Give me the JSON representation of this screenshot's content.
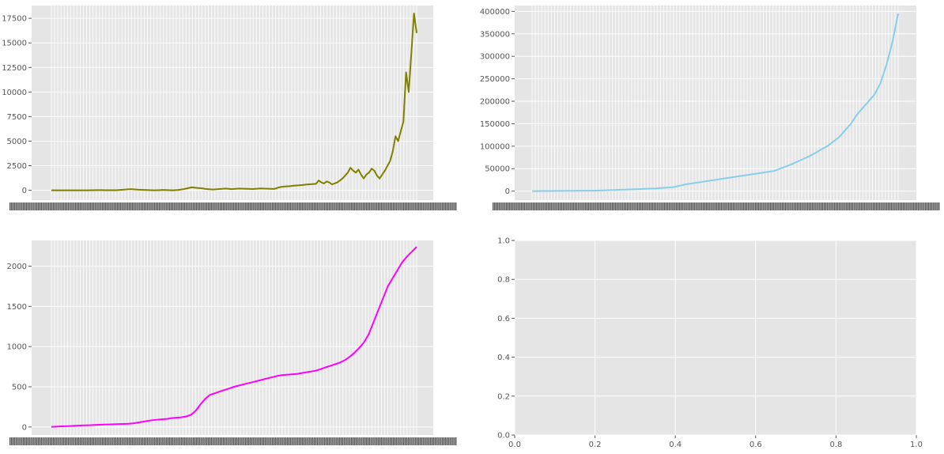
{
  "figure": {
    "background": "#ffffff",
    "axes_background": "#e5e5e5",
    "grid_color": "#ffffff",
    "tick_color": "#555555"
  },
  "chart_data": [
    {
      "type": "line",
      "position": "top-left",
      "grid": true,
      "y_ticks": [
        0,
        2500,
        5000,
        7500,
        10000,
        12500,
        15000,
        17500
      ],
      "y_tick_labels": [
        "0",
        "2500",
        "5000",
        "7500",
        "10000",
        "12500",
        "15000",
        "17500"
      ],
      "ylim": [
        -1000,
        18800
      ],
      "x_tick_labels_note": "x tick labels illegible (overlapping dates)",
      "series": [
        {
          "color": "#808000",
          "values": [
            0,
            0,
            0,
            0,
            0,
            0,
            0,
            0,
            0,
            0,
            0,
            0,
            0,
            0,
            0,
            5,
            10,
            15,
            20,
            15,
            10,
            8,
            6,
            5,
            10,
            20,
            40,
            60,
            80,
            110,
            120,
            100,
            80,
            60,
            50,
            40,
            30,
            20,
            10,
            0,
            10,
            20,
            40,
            30,
            20,
            10,
            0,
            20,
            40,
            80,
            120,
            180,
            240,
            300,
            280,
            240,
            220,
            200,
            150,
            120,
            100,
            80,
            100,
            120,
            140,
            160,
            180,
            150,
            120,
            140,
            160,
            180,
            170,
            160,
            150,
            140,
            130,
            150,
            170,
            190,
            180,
            170,
            160,
            150,
            140,
            200,
            300,
            350,
            380,
            400,
            420,
            450,
            480,
            500,
            520,
            540,
            580,
            600,
            620,
            640,
            660,
            1000,
            800,
            700,
            900,
            800,
            600,
            700,
            800,
            1000,
            1200,
            1500,
            1800,
            2300,
            2000,
            1800,
            2100,
            1600,
            1200,
            1600,
            1800,
            2200,
            2000,
            1500,
            1200,
            1600,
            2000,
            2500,
            3000,
            4000,
            5500,
            5000,
            6000,
            7000,
            12000,
            10000,
            14000,
            18000,
            16000
          ]
        }
      ]
    },
    {
      "type": "line",
      "position": "top-right",
      "grid": true,
      "y_ticks": [
        0,
        50000,
        100000,
        150000,
        200000,
        250000,
        300000,
        350000,
        400000
      ],
      "y_tick_labels": [
        "0",
        "50000",
        "100000",
        "150000",
        "200000",
        "250000",
        "300000",
        "350000",
        "400000"
      ],
      "ylim": [
        -20000,
        413000
      ],
      "x_tick_labels_note": "x tick labels illegible (overlapping dates)",
      "series": [
        {
          "color": "#87ceeb",
          "values": [
            0,
            100,
            200,
            300,
            400,
            500,
            600,
            700,
            800,
            900,
            1000,
            1200,
            1500,
            2000,
            2500,
            3000,
            3500,
            4000,
            4500,
            5000,
            5500,
            6000,
            7000,
            8000,
            9000,
            12000,
            15000,
            17000,
            19000,
            21000,
            23000,
            25000,
            27000,
            29000,
            31000,
            33000,
            35000,
            37000,
            39000,
            41000,
            43000,
            45000,
            50000,
            55000,
            60000,
            66000,
            72000,
            78000,
            85000,
            93000,
            100000,
            110000,
            120000,
            135000,
            150000,
            170000,
            185000,
            200000,
            215000,
            240000,
            280000,
            330000,
            395000
          ]
        }
      ]
    },
    {
      "type": "line",
      "position": "bottom-left",
      "grid": true,
      "y_ticks": [
        0,
        500,
        1000,
        1500,
        2000
      ],
      "y_tick_labels": [
        "0",
        "500",
        "1000",
        "1500",
        "2000"
      ],
      "ylim": [
        -100,
        2320
      ],
      "x_tick_labels_note": "x tick labels illegible (overlapping dates)",
      "series": [
        {
          "color": "#ff00ff",
          "values": [
            2,
            5,
            8,
            10,
            12,
            15,
            18,
            20,
            22,
            25,
            28,
            30,
            32,
            34,
            36,
            38,
            40,
            45,
            55,
            65,
            75,
            85,
            90,
            95,
            100,
            110,
            115,
            120,
            130,
            150,
            200,
            280,
            350,
            400,
            420,
            440,
            460,
            480,
            500,
            515,
            530,
            545,
            560,
            575,
            590,
            605,
            620,
            635,
            645,
            650,
            655,
            660,
            670,
            680,
            690,
            700,
            720,
            740,
            760,
            780,
            800,
            830,
            870,
            920,
            980,
            1050,
            1150,
            1300,
            1450,
            1600,
            1750,
            1850,
            1950,
            2050,
            2120,
            2180,
            2240
          ]
        }
      ]
    },
    {
      "type": "line",
      "position": "bottom-right",
      "grid": true,
      "series": [],
      "x_ticks": [
        0.0,
        0.2,
        0.4,
        0.6,
        0.8,
        1.0
      ],
      "x_tick_labels": [
        "0.0",
        "0.2",
        "0.4",
        "0.6",
        "0.8",
        "1.0"
      ],
      "y_ticks": [
        0.0,
        0.2,
        0.4,
        0.6,
        0.8,
        1.0
      ],
      "y_tick_labels": [
        "0.0",
        "0.2",
        "0.4",
        "0.6",
        "0.8",
        "1.0"
      ],
      "xlim": [
        0,
        1
      ],
      "ylim": [
        0,
        1
      ]
    }
  ]
}
